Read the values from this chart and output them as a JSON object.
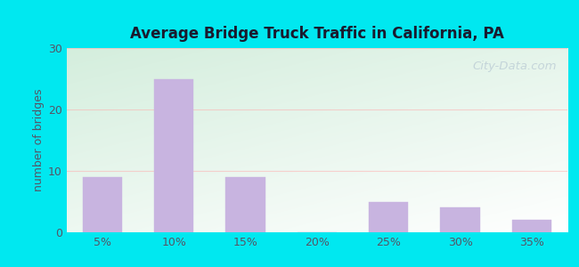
{
  "categories": [
    "5%",
    "10%",
    "15%",
    "20%",
    "25%",
    "30%",
    "35%"
  ],
  "values": [
    9,
    25,
    9,
    0,
    5,
    4,
    2
  ],
  "bar_color": "#c8b4e0",
  "bar_edgecolor": "#c8b4e0",
  "title": "Average Bridge Truck Traffic in California, PA",
  "ylabel": "number of bridges",
  "ylim": [
    0,
    30
  ],
  "yticks": [
    0,
    10,
    20,
    30
  ],
  "outer_bg": "#00e8f0",
  "plot_bg_color_topleft": "#d4eedd",
  "plot_bg_color_bottomright": "#ffffff",
  "title_color": "#1a1a2e",
  "axis_label_color": "#555566",
  "tick_label_color": "#555566",
  "grid_color": "#ffaaaa",
  "grid_alpha": 0.5,
  "watermark": "City-Data.com",
  "watermark_color": "#aabbcc",
  "watermark_alpha": 0.55
}
